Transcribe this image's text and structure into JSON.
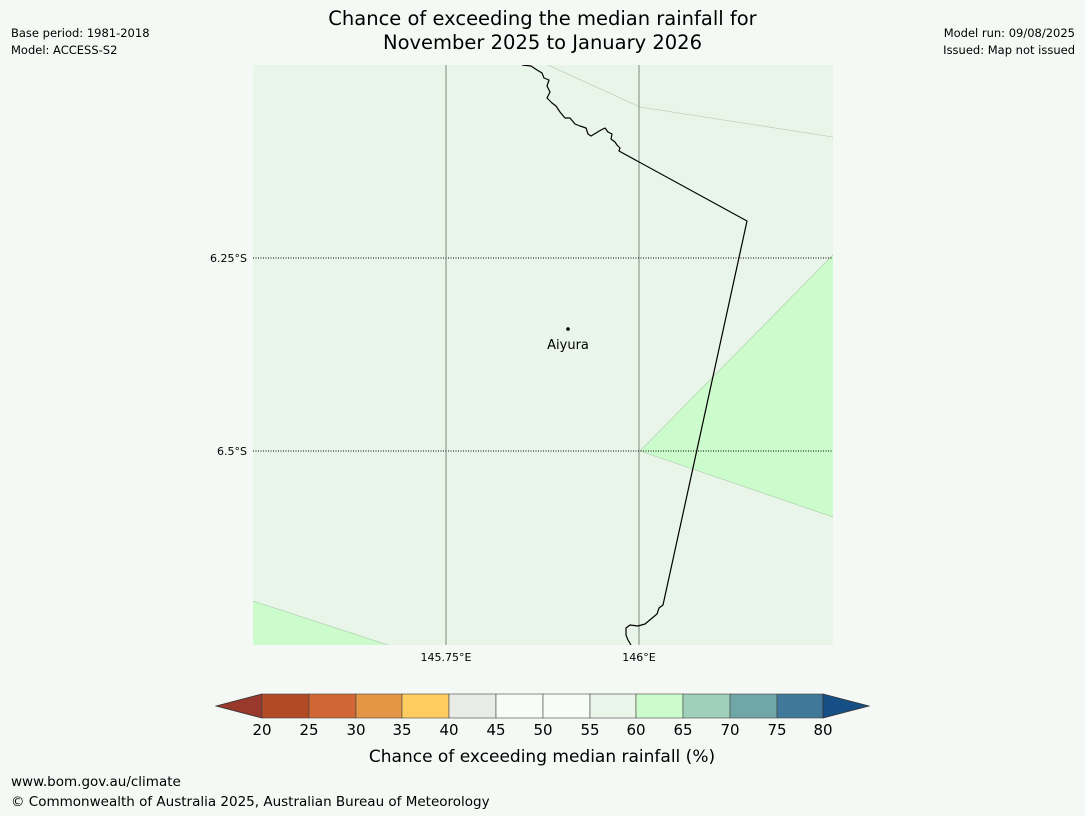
{
  "title": {
    "line1": "Chance of exceeding the median rainfall for",
    "line2": "November 2025 to January 2026"
  },
  "meta_left": {
    "base_period": "Base period: 1981-2018",
    "model": "Model: ACCESS-S2"
  },
  "meta_right": {
    "model_run": "Model run: 09/08/2025",
    "issued": "Issued: Map not issued"
  },
  "map": {
    "lat_labels": [
      "6.25°S",
      "6.5°S"
    ],
    "lon_labels": [
      "145.75°E",
      "146°E"
    ],
    "place": "Aiyura",
    "region_colors": {
      "background_55_60": "#e9f5e9",
      "band_60_65": "#ccfccc"
    }
  },
  "legend": {
    "ticks": [
      "20",
      "25",
      "30",
      "35",
      "40",
      "45",
      "50",
      "55",
      "60",
      "65",
      "70",
      "75",
      "80"
    ],
    "colors": {
      "below": "#98392b",
      "bins": [
        "#b24a25",
        "#d06633",
        "#e39646",
        "#fecc5f",
        "#e9ebe6",
        "#f8fcf8",
        "#f8fcf8",
        "#e9f5e9",
        "#ccfccc",
        "#9fd1ba",
        "#6fa6a6",
        "#3f7899"
      ],
      "above": "#164e86"
    },
    "label": "Chance of exceeding median rainfall (%)"
  },
  "footer": {
    "url": "www.bom.gov.au/climate",
    "copyright": "© Commonwealth of Australia 2025, Australian Bureau of Meteorology"
  }
}
